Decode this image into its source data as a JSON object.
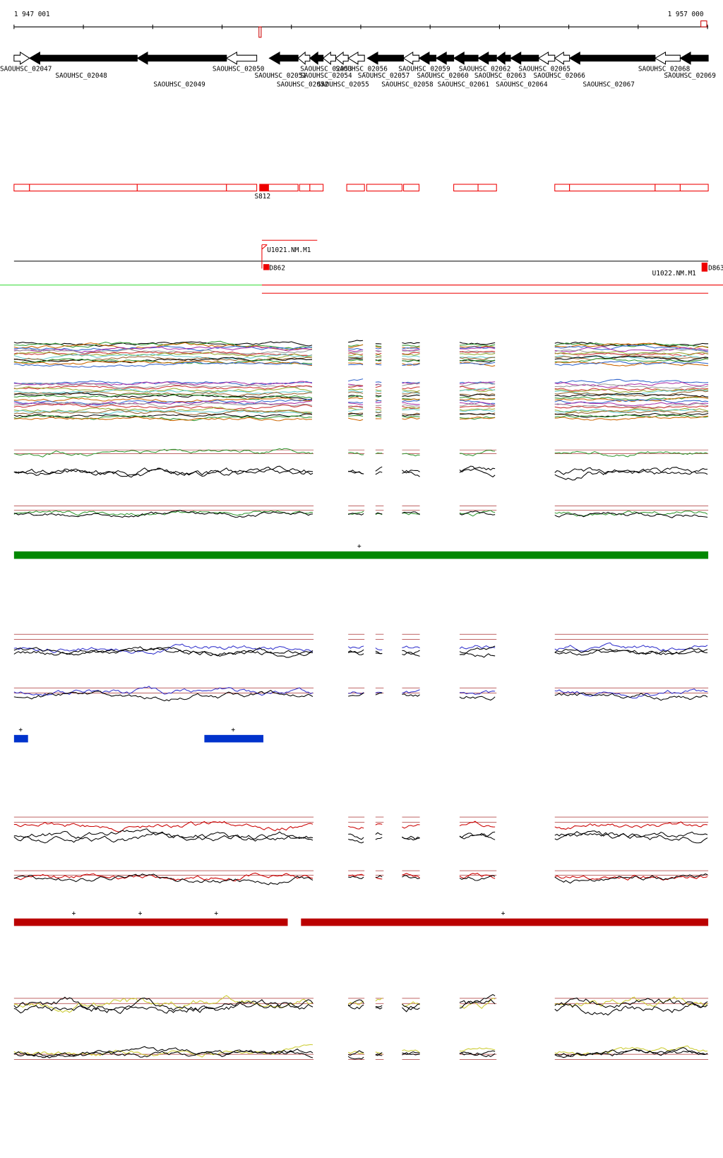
{
  "ruler": {
    "start": "1 947 001",
    "end": "1 957 000"
  },
  "genes": [
    "SAOUHSC_02047",
    "SAOUHSC_02048",
    "SAOUHSC_02049",
    "SAOUHSC_02050",
    "SAOUHSC_02051",
    "SAOUHSC_02052",
    "SAOUHSC_02053",
    "SAOUHSC_02054",
    "SAOUHSC_02055",
    "SAOUHSC_02056",
    "SAOUHSC_02057",
    "SAOUHSC_02058",
    "SAOUHSC_02059",
    "SAOUHSC_02060",
    "SAOUHSC_02061",
    "SAOUHSC_02062",
    "SAOUHSC_02063",
    "SAOUHSC_02064",
    "SAOUHSC_02065",
    "SAOUHSC_02066",
    "SAOUHSC_02067",
    "SAOUHSC_02068",
    "SAOUHSC_02069"
  ],
  "features": {
    "segment": "S812",
    "upstream1": "U1021.NM.M1",
    "down1": "D862",
    "down2": "D863",
    "upstream2": "U1022.NM.M1"
  },
  "marks": {
    "green": [
      "+"
    ],
    "blue": [
      "+",
      "+"
    ],
    "red": [
      "+",
      "+",
      "+",
      "+"
    ]
  }
}
